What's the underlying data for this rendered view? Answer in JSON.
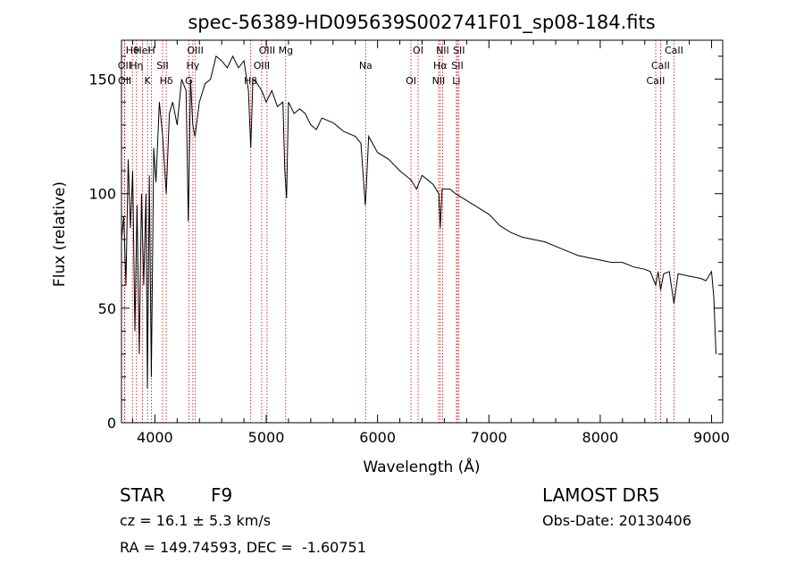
{
  "chart_data": {
    "type": "line",
    "title": "spec-56389-HD095639S002741F01_sp08-184.fits",
    "xlabel": "Wavelength (Å)",
    "ylabel": "Flux (relative)",
    "xlim": [
      3700,
      9100
    ],
    "ylim": [
      0,
      167
    ],
    "x_ticks": [
      4000,
      5000,
      6000,
      7000,
      8000,
      9000
    ],
    "y_ticks": [
      0,
      50,
      100,
      150
    ],
    "grid": false,
    "series": [
      {
        "x": [
          3700,
          3720,
          3740,
          3760,
          3780,
          3800,
          3820,
          3840,
          3860,
          3880,
          3900,
          3920,
          3933,
          3950,
          3968,
          3990,
          4010,
          4040,
          4070,
          4102,
          4130,
          4160,
          4200,
          4240,
          4280,
          4300,
          4320,
          4340,
          4360,
          4400,
          4450,
          4500,
          4550,
          4600,
          4650,
          4700,
          4750,
          4800,
          4840,
          4861,
          4880,
          4920,
          4960,
          5000,
          5050,
          5100,
          5150,
          5167,
          5183,
          5200,
          5250,
          5300,
          5350,
          5400,
          5450,
          5500,
          5600,
          5700,
          5800,
          5850,
          5890,
          5896,
          5920,
          6000,
          6100,
          6200,
          6300,
          6350,
          6400,
          6500,
          6550,
          6563,
          6580,
          6650,
          6700,
          6800,
          6900,
          7000,
          7100,
          7200,
          7300,
          7400,
          7500,
          7600,
          7700,
          7800,
          7900,
          8000,
          8100,
          8200,
          8300,
          8400,
          8450,
          8498,
          8520,
          8542,
          8570,
          8620,
          8662,
          8700,
          8800,
          8900,
          8950,
          9000,
          9020,
          9040
        ],
        "y": [
          80,
          90,
          60,
          115,
          85,
          110,
          40,
          95,
          30,
          100,
          60,
          100,
          15,
          108,
          20,
          120,
          105,
          140,
          125,
          100,
          135,
          140,
          130,
          150,
          145,
          88,
          150,
          130,
          125,
          140,
          148,
          150,
          160,
          158,
          155,
          160,
          155,
          158,
          145,
          120,
          150,
          148,
          145,
          140,
          145,
          138,
          140,
          110,
          98,
          140,
          135,
          137,
          135,
          130,
          128,
          133,
          131,
          127,
          125,
          122,
          95,
          100,
          125,
          118,
          115,
          110,
          106,
          102,
          108,
          104,
          100,
          85,
          102,
          102,
          100,
          97,
          94,
          91,
          86,
          83,
          81,
          80,
          79,
          77,
          75,
          73,
          72,
          71,
          70,
          70,
          68,
          67,
          66,
          60,
          66,
          58,
          65,
          66,
          52,
          65,
          64,
          63,
          62,
          66,
          55,
          30
        ]
      }
    ],
    "line_labels": [
      {
        "label": "Hθ",
        "wavelength": 3798
      },
      {
        "label": "OII",
        "wavelength": 3727
      },
      {
        "label": "OII",
        "wavelength": 3729
      },
      {
        "label": "HeI",
        "wavelength": 3889
      },
      {
        "label": "Hη",
        "wavelength": 3835
      },
      {
        "label": "K",
        "wavelength": 3934
      },
      {
        "label": "H",
        "wavelength": 3969
      },
      {
        "label": "SII",
        "wavelength": 4069
      },
      {
        "label": "Hδ",
        "wavelength": 4102
      },
      {
        "label": "OIII",
        "wavelength": 4363
      },
      {
        "label": "Hγ",
        "wavelength": 4341
      },
      {
        "label": "G",
        "wavelength": 4305
      },
      {
        "label": "OIII",
        "wavelength": 5007
      },
      {
        "label": "OIII",
        "wavelength": 4959
      },
      {
        "label": "Hβ",
        "wavelength": 4861
      },
      {
        "label": "Mg",
        "wavelength": 5175
      },
      {
        "label": "Na",
        "wavelength": 5893
      },
      {
        "label": "OI",
        "wavelength": 6300
      },
      {
        "label": "OI",
        "wavelength": 6364
      },
      {
        "label": "Hα",
        "wavelength": 6563
      },
      {
        "label": "NII",
        "wavelength": 6548
      },
      {
        "label": "NII",
        "wavelength": 6584
      },
      {
        "label": "SII",
        "wavelength": 6717
      },
      {
        "label": "Li",
        "wavelength": 6708
      },
      {
        "label": "SII",
        "wavelength": 6731
      },
      {
        "label": "CaII",
        "wavelength": 8542
      },
      {
        "label": "CaII",
        "wavelength": 8498
      },
      {
        "label": "CaII",
        "wavelength": 8662
      }
    ]
  },
  "info": {
    "object_class": "STAR",
    "subclass": "F9",
    "survey": "LAMOST DR5",
    "redshift": "cz = 16.1 ± 5.3 km/s",
    "obs_date": "Obs-Date: 20130406",
    "coords": "RA = 149.74593, DEC =  -1.60751"
  }
}
